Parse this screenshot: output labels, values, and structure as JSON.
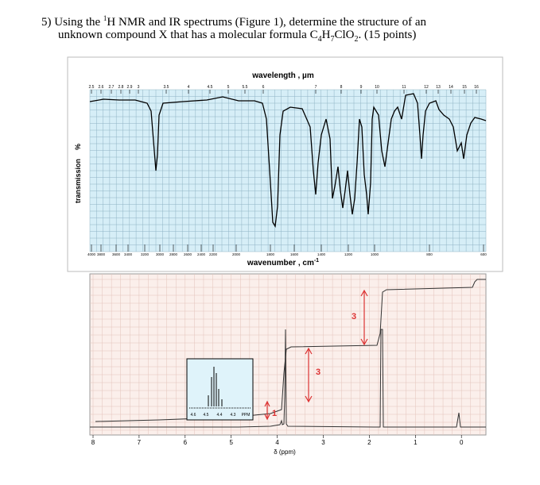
{
  "question": {
    "number": "5)",
    "text_before": "Using the ",
    "superscript": "1",
    "text_after": "H NMR and IR spectrums (Figure 1), determine the structure of an",
    "line2_before": "unknown compound X that has a molecular formula ",
    "formula": [
      "C",
      "4",
      "H",
      "7",
      "ClO",
      "2"
    ],
    "line2_end": ". (15 points)"
  },
  "ir": {
    "top_axis_label": "wavelength , µm",
    "top_ticks": [
      "2.5",
      "2.6",
      "2.7",
      "2.8",
      "2.9",
      "3",
      "3.5",
      "4",
      "4.5",
      "5",
      "5.5",
      "6",
      "7",
      "8",
      "9",
      "10",
      "11",
      "12",
      "13",
      "14",
      "15",
      "16"
    ],
    "bottom_ticks": [
      "4000",
      "3800",
      "3600",
      "3400",
      "3200",
      "3000",
      "2800",
      "2600",
      "2400",
      "2200",
      "2000",
      "1800",
      "1600",
      "1400",
      "1200",
      "1000",
      "800",
      "600"
    ],
    "bottom_axis_label": "wavenumber , cm",
    "bottom_axis_label_sup": "-1",
    "y_axis_label": "transmission",
    "y_axis_unit": "%"
  },
  "nmr": {
    "x_ticks": [
      "8",
      "7",
      "6",
      "5",
      "4",
      "3",
      "2",
      "1",
      "0"
    ],
    "x_axis_label": "δ (ppm)",
    "integrations": [
      "3",
      "3",
      "1"
    ],
    "inset_ticks": [
      "4.6",
      "4.5",
      "4.4",
      "4.3",
      "PPM"
    ]
  }
}
